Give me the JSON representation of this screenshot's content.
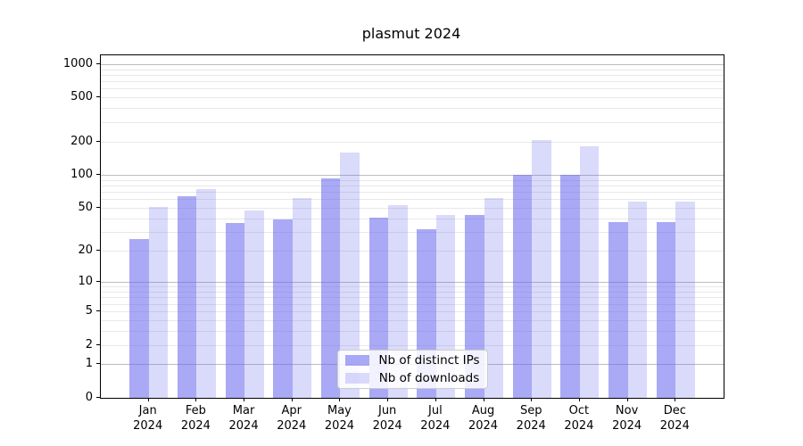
{
  "chart_data": {
    "type": "bar",
    "title": "plasmut 2024",
    "xlabel": "",
    "ylabel": "",
    "categories": [
      "Jan",
      "Feb",
      "Mar",
      "Apr",
      "May",
      "Jun",
      "Jul",
      "Aug",
      "Sep",
      "Oct",
      "Nov",
      "Dec"
    ],
    "x_tick_second_line": "2024",
    "series": [
      {
        "name": "Nb of distinct IPs",
        "color": "#6666ee",
        "alpha": 0.56,
        "values": [
          26,
          64,
          36,
          39,
          93,
          41,
          32,
          43,
          100,
          100,
          37,
          37
        ]
      },
      {
        "name": "Nb of downloads",
        "color": "#6666ee",
        "alpha": 0.24,
        "values": [
          51,
          74,
          47,
          62,
          160,
          53,
          43,
          62,
          205,
          180,
          57,
          57
        ]
      }
    ],
    "y_scale": "log1p",
    "y_ticks": [
      0,
      1,
      2,
      5,
      10,
      20,
      50,
      100,
      200,
      500,
      1000
    ],
    "y_major_gridlines": [
      1,
      10,
      100,
      1000
    ],
    "y_minor_gridlines": [
      2,
      3,
      4,
      5,
      6,
      7,
      8,
      9,
      20,
      30,
      40,
      50,
      60,
      70,
      80,
      90,
      200,
      300,
      400,
      500,
      600,
      700,
      800,
      900
    ],
    "ylim": [
      0,
      1200
    ],
    "grid": true,
    "legend_position": "lower-center"
  }
}
